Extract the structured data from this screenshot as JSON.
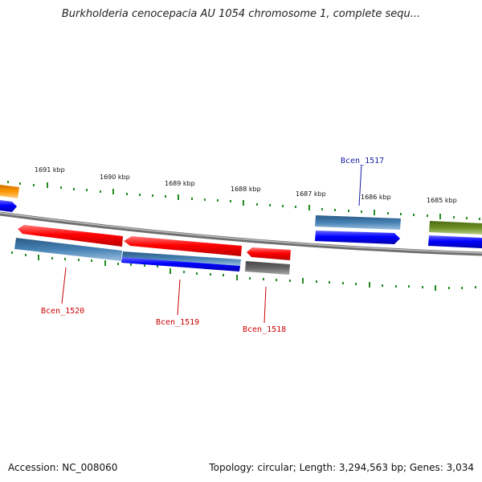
{
  "title": "Burkholderia cenocepacia AU 1054 chromosome 1, complete sequ...",
  "footer": {
    "accession": "Accession: NC_008060",
    "summary": "Topology: circular; Length: 3,294,563 bp; Genes: 3,034"
  },
  "ticks": [
    "1691 kbp",
    "1690 kbp",
    "1689 kbp",
    "1688 kbp",
    "1687 kbp",
    "1686 kbp",
    "1685 kbp"
  ],
  "genes": [
    {
      "label": "Bcen_1517",
      "color": "#1a1aa8"
    },
    {
      "label": "Bcen_1518",
      "color": "#cc0000"
    },
    {
      "label": "Bcen_1519",
      "color": "#cc0000"
    },
    {
      "label": "Bcen_1520",
      "color": "#cc0000"
    }
  ],
  "colors": {
    "backbone": "#808080",
    "forward_cds": "#0000ff",
    "reverse_cds": "#ff0000",
    "blast_hit": "#4682b4",
    "other_hit": "#6b8e23",
    "pseudo": "#666666",
    "orange": "#ff9900",
    "tick": "#228b22"
  }
}
